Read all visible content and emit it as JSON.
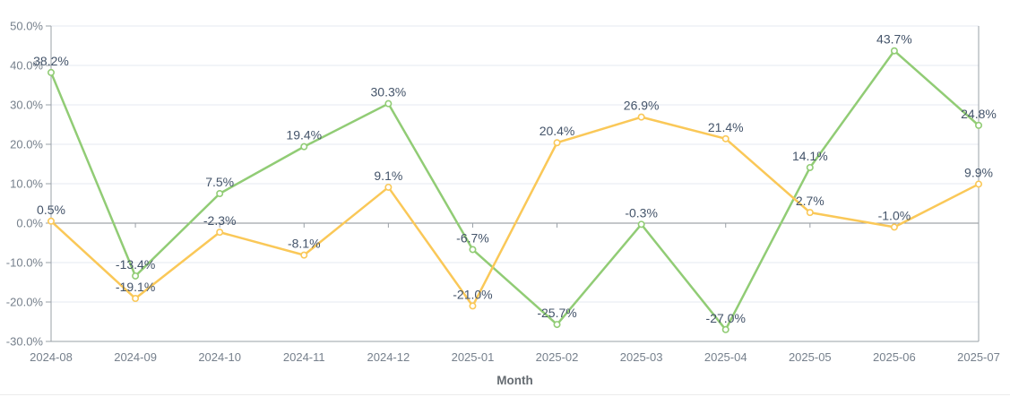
{
  "chart_data": {
    "type": "line",
    "title": "",
    "xlabel": "Month",
    "ylabel": "",
    "x": [
      "2024-08",
      "2024-09",
      "2024-10",
      "2024-11",
      "2024-12",
      "2025-01",
      "2025-02",
      "2025-03",
      "2025-04",
      "2025-05",
      "2025-06",
      "2025-07"
    ],
    "ylim": [
      -30,
      50
    ],
    "y_ticks": [
      50,
      40,
      30,
      20,
      10,
      0,
      -10,
      -20,
      -30
    ],
    "y_tick_labels": [
      "50.0%",
      "40.0%",
      "30.0%",
      "20.0%",
      "10.0%",
      "0.0%",
      "-10.0%",
      "-20.0%",
      "-30.0%"
    ],
    "grid": true,
    "legend": "none",
    "marker": "empty-circle",
    "series": [
      {
        "name": "series-green",
        "color": "#91cc75",
        "values": [
          38.2,
          -13.4,
          7.5,
          19.4,
          30.3,
          -6.7,
          -25.7,
          -0.3,
          -27.0,
          14.1,
          43.7,
          24.8
        ],
        "labels": [
          "38.2%",
          "-13.4%",
          "7.5%",
          "19.4%",
          "30.3%",
          "-6.7%",
          "-25.7%",
          "-0.3%",
          "-27.0%",
          "14.1%",
          "43.7%",
          "24.8%"
        ]
      },
      {
        "name": "series-yellow",
        "color": "#fac858",
        "values": [
          0.5,
          -19.1,
          -2.3,
          -8.1,
          9.1,
          -21.0,
          20.4,
          26.9,
          21.4,
          2.7,
          -1.0,
          9.9
        ],
        "labels": [
          "0.5%",
          "-19.1%",
          "-2.3%",
          "-8.1%",
          "9.1%",
          "-21.0%",
          "20.4%",
          "26.9%",
          "21.4%",
          "2.7%",
          "-1.0%",
          "9.9%"
        ]
      }
    ],
    "style": {
      "background": "#ffffff",
      "grid_color": "#e4e9f2",
      "axis_color": "#9aa0a7",
      "zero_line_color": "#8a8f96",
      "tick_label_color": "#76808c",
      "data_label_color": "#44546a",
      "axis_title_color": "#666c72"
    }
  }
}
